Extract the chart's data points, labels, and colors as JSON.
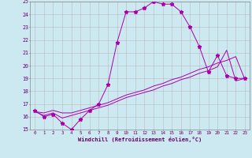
{
  "xlabel": "Windchill (Refroidissement éolien,°C)",
  "background_color": "#cce8f0",
  "line_color": "#aa00aa",
  "grid_color": "#bbbbbb",
  "xlim": [
    -0.5,
    23.5
  ],
  "ylim": [
    15,
    25
  ],
  "xticks": [
    0,
    1,
    2,
    3,
    4,
    5,
    6,
    7,
    8,
    9,
    10,
    11,
    12,
    13,
    14,
    15,
    16,
    17,
    18,
    19,
    20,
    21,
    22,
    23
  ],
  "yticks": [
    15,
    16,
    17,
    18,
    19,
    20,
    21,
    22,
    23,
    24,
    25
  ],
  "series": [
    {
      "x": [
        0,
        1,
        2,
        3,
        4,
        5,
        6,
        7,
        8,
        9,
        10,
        11,
        12,
        13,
        14,
        15,
        16,
        17,
        18,
        19,
        20,
        21,
        22,
        23
      ],
      "y": [
        16.5,
        16.0,
        16.2,
        15.5,
        15.0,
        15.8,
        16.5,
        17.0,
        18.5,
        21.8,
        24.2,
        24.2,
        24.5,
        25.0,
        24.8,
        24.8,
        24.2,
        23.0,
        21.5,
        19.5,
        20.8,
        19.2,
        19.0,
        19.0
      ],
      "marker": true
    },
    {
      "x": [
        0,
        1,
        2,
        3,
        4,
        5,
        6,
        7,
        8,
        9,
        10,
        11,
        12,
        13,
        14,
        15,
        16,
        17,
        18,
        19,
        20,
        21,
        22,
        23
      ],
      "y": [
        16.4,
        16.3,
        16.5,
        16.3,
        16.3,
        16.5,
        16.7,
        16.9,
        17.1,
        17.4,
        17.7,
        17.9,
        18.1,
        18.4,
        18.6,
        18.9,
        19.1,
        19.4,
        19.7,
        19.9,
        20.2,
        20.4,
        20.7,
        18.9
      ],
      "marker": false
    },
    {
      "x": [
        0,
        1,
        2,
        3,
        4,
        5,
        6,
        7,
        8,
        9,
        10,
        11,
        12,
        13,
        14,
        15,
        16,
        17,
        18,
        19,
        20,
        21,
        22,
        23
      ],
      "y": [
        16.4,
        16.1,
        16.3,
        15.9,
        16.1,
        16.3,
        16.5,
        16.7,
        16.9,
        17.2,
        17.5,
        17.7,
        17.9,
        18.1,
        18.4,
        18.6,
        18.9,
        19.1,
        19.4,
        19.6,
        19.9,
        21.2,
        18.8,
        19.0
      ],
      "marker": false
    }
  ]
}
